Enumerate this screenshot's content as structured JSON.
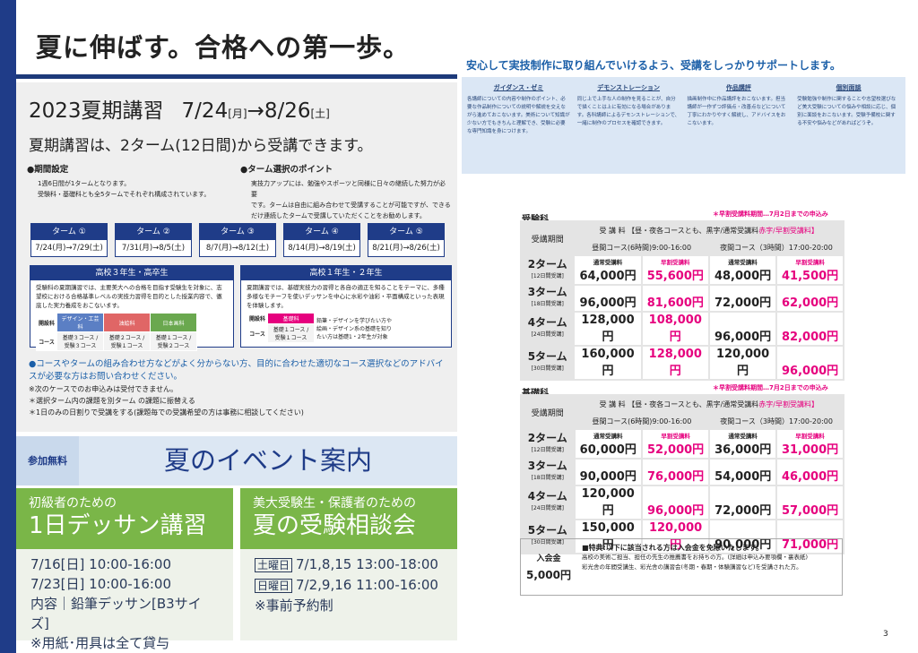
{
  "header": {
    "title": "夏に伸ばす。合格への第一歩。"
  },
  "support": {
    "heading": "安心して実技制作に取り組んでいけるよう、受講をしっかりサポートします。",
    "columns": [
      {
        "title": "ガイダンス・ゼミ",
        "text": "各講師についての内容や制作のポイント、必要な作品制作についての説明や解説を交えながら進めておこないます。美術について知識が少ない方でもきちんと理解でき、受験に必要な専門知識を身につけます。"
      },
      {
        "title": "デモンストレーション",
        "text": "同じ上で上手な人の制作を見ることが、自分で描くことは上に有効になる場合があります。各科講師によるデモンストレーションで、一緒に制作のプロセスを確認できます。"
      },
      {
        "title": "作品講評",
        "text": "描画制作中に作品講評をおこないます。担当講師が一作ずつ評価点・改善点などについて丁寧にわかりやすく解説し、アドバイスをおこないます。"
      },
      {
        "title": "個別面談",
        "text": "受験勉強や制作に関することや志望校選びなど美大受験についての悩みや相談に応じ、個別に面談をおこないます。受験予備校に関する不安や悩みなどがあればどうぞ。"
      }
    ]
  },
  "course": {
    "title": "2023夏期講習",
    "start": "7/24",
    "start_day": "[月]",
    "arrow": "→8/26",
    "end_day": "[土]",
    "subtitle": "夏期講習は、2ターム(12日間)から受講できます。",
    "points": [
      {
        "heading": "●期間設定",
        "lines": [
          "1週6日間が1タームとなります。",
          "受験科・基礎科とも全5タームでそれぞれ構成されています。"
        ]
      },
      {
        "heading": "●ターム選択のポイント",
        "lines": [
          "実技力アップには、勉強やスポーツと同様に日々の継続した努力が必要",
          "です。タームは自由に組み合わせて受講することが可能ですが、できる",
          "だけ連続したタームで受講していただくことをお勧めします。"
        ]
      }
    ],
    "terms": [
      {
        "label": "ターム ①",
        "dates": "7/24(月)→7/29(土)"
      },
      {
        "label": "ターム ②",
        "dates": "7/31(月)→8/5(土)"
      },
      {
        "label": "ターム ③",
        "dates": "8/7(月)→8/12(土)"
      },
      {
        "label": "ターム ④",
        "dates": "8/14(月)→8/19(土)"
      },
      {
        "label": "ターム ⑤",
        "dates": "8/21(月)→8/26(土)"
      }
    ],
    "grades": [
      {
        "title": "高校３年生・高卒生",
        "text": "受験科の夏期講習では、主要美大への合格を目指す受験生を対象に、志望校における合格基準レベルの実技力習得を目的とした授業内容で、徹底した実力養成をおこないます。",
        "row1": "開設科",
        "row2": "コース",
        "subjects": [
          {
            "name": "デザイン・工芸科",
            "color": "#5b7fc4",
            "courses": "基礎３コース / 受験３コース"
          },
          {
            "name": "油絵科",
            "color": "#e06666",
            "courses": "基礎２コース / 受験１コース"
          },
          {
            "name": "日本画科",
            "color": "#6aa84f",
            "courses": "基礎１コース / 受験２コース"
          }
        ],
        "extra": ""
      },
      {
        "title": "高校１年生・２年生",
        "text": "夏期講習では、基礎実技力の習得と各自の適正を知ることをテーマに、多種多様なモチーフを使いデッサンを中心に水彩や油彩・平面構成といった表現を体験します。",
        "row1": "開設科",
        "row2": "コース",
        "subjects": [
          {
            "name": "基礎科",
            "color": "#e6007e",
            "courses": "基礎１コース / 受験１コース"
          }
        ],
        "extra": "鉛筆・デザインを学びたい方や絵画・デザイン系の基礎を知りたい方は基礎1・2年生が対象"
      }
    ],
    "notes": [
      "●コースやタームの組み合わせ方などがよく分からない方、目的に合わせた適切なコース選択などのアドバイスが必要な方はお問い合わせください。",
      "※次のケースでのお申込みは受付できません。",
      "＊選択ターム内の課題を別ターム の課題に振替える",
      "＊1日のみの日割りで受講をする(課題毎での受講希望の方は事務に相談してください)"
    ]
  },
  "event": {
    "badge": "参加無料",
    "title": "夏のイベント案内",
    "cards": [
      {
        "sub": "初級者のための",
        "title": "1日デッサン講習",
        "lines": [
          "7/16[日] 10:00-16:00",
          "7/23[日] 10:00-16:00",
          "内容｜鉛筆デッサン[B3サイズ]",
          "※用紙･用具は全て貸与"
        ]
      },
      {
        "sub": "美大受験生・保護者のための",
        "title": "夏の受験相談会",
        "rows": [
          {
            "tag": "土曜日",
            "text": "7/1,8,15 13:00-18:00"
          },
          {
            "tag": "日曜日",
            "text": "7/2,9,16 11:00-16:00"
          }
        ],
        "lines": [
          "※事前予約制"
        ]
      }
    ]
  },
  "prices": [
    {
      "name": "受験科",
      "note": "＊早割受講料期間…7月2日までの申込み",
      "period": "受講期間",
      "fee": "受 講 料 【昼・夜各コースとも、",
      "black": "黒字/通常受講料",
      "red": "赤字/早割受講料】",
      "day": "昼間コース(6時間)9:00-16:00",
      "night": "夜間コース（3時間）17:00-20:00",
      "normal": "通常受講料",
      "early": "早割受講料",
      "rows": [
        {
          "term": "2ターム",
          "days": "[12日間受講]",
          "prices": [
            "64,000円",
            "55,600円",
            "48,000円",
            "41,500円"
          ]
        },
        {
          "term": "3ターム",
          "days": "[18日間受講]",
          "prices": [
            "96,000円",
            "81,600円",
            "72,000円",
            "62,000円"
          ]
        },
        {
          "term": "4ターム",
          "days": "[24日間受講]",
          "prices": [
            "128,000円",
            "108,000円",
            "96,000円",
            "82,000円"
          ]
        },
        {
          "term": "5ターム",
          "days": "[30日間受講]",
          "prices": [
            "160,000円",
            "128,000円",
            "120,000円",
            "96,000円"
          ]
        }
      ]
    },
    {
      "name": "基礎科",
      "note": "＊早割受講料期間…7月2日までの申込み",
      "period": "受講期間",
      "fee": "受 講 料 【昼・夜各コースとも、",
      "black": "黒字/通常受講料",
      "red": "赤字/早割受講料】",
      "day": "昼間コース(6時間)9:00-16:00",
      "night": "夜間コース（3時間）17:00-20:00",
      "normal": "通常受講料",
      "early": "早割受講料",
      "rows": [
        {
          "term": "2ターム",
          "days": "[12日間受講]",
          "prices": [
            "60,000円",
            "52,000円",
            "36,000円",
            "31,000円"
          ]
        },
        {
          "term": "3ターム",
          "days": "[18日間受講]",
          "prices": [
            "90,000円",
            "76,000円",
            "54,000円",
            "46,000円"
          ]
        },
        {
          "term": "4ターム",
          "days": "[24日間受講]",
          "prices": [
            "120,000円",
            "96,000円",
            "72,000円",
            "57,000円"
          ]
        },
        {
          "term": "5ターム",
          "days": "[30日間受講]",
          "prices": [
            "150,000円",
            "120,000円",
            "90,000円",
            "71,000円"
          ]
        }
      ]
    }
  ],
  "entry": {
    "label": "入会金",
    "fee": "5,000円",
    "heading": "■特典:以下に該当される方は入会金を免除いたします。",
    "lines": [
      "高校の美術ご担当、担任の先生の推薦書をお持ちの方。(詳細は申込み要項欄・裏表紙)",
      "彩光舎の年間受講生、彩光舎の講習会(冬期・春期・体験講習など)を受講された方。"
    ]
  },
  "page": "3"
}
